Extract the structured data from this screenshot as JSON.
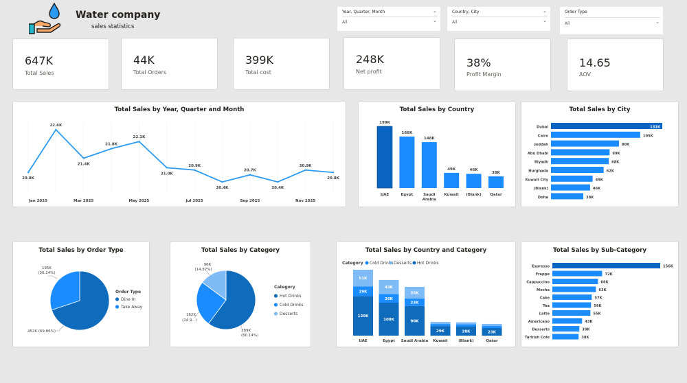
{
  "header": {
    "company": "Water company",
    "subtitle": "sales statistics",
    "logo_icon": "water-drop-hand-icon"
  },
  "slicers": [
    {
      "label": "Year, Quarter, Month",
      "value": "All"
    },
    {
      "label": "Country, City",
      "value": "All"
    },
    {
      "label": "Order Type",
      "value": "All"
    }
  ],
  "kpis": [
    {
      "value": "647K",
      "label": "Total Sales"
    },
    {
      "value": "44K",
      "label": "Total Orders"
    },
    {
      "value": "399K",
      "label": "Total cost"
    },
    {
      "value": "248K",
      "label": "Net profit"
    },
    {
      "value": "38%",
      "label": "Profit Margin"
    },
    {
      "value": "14.65",
      "label": "AOV"
    }
  ],
  "colors": {
    "primary": "#1a8cff",
    "dark": "#0f6cbd",
    "light": "#7fbcf7",
    "line": "#2b9af3",
    "highlight": "#0a64c2"
  },
  "chart_data": [
    {
      "type": "line",
      "title": "Total Sales by Year, Quarter and Month",
      "tick_labels": [
        "Jan 2025",
        "Mar 2025",
        "May 2025",
        "Jul 2025",
        "Sep 2025",
        "Nov 2025"
      ],
      "x": [
        "Jan 2025",
        "Feb 2025",
        "Mar 2025",
        "Apr 2025",
        "May 2025",
        "Jun 2025",
        "Jul 2025",
        "Aug 2025",
        "Sep 2025",
        "Oct 2025",
        "Nov 2025",
        "Dec 2025"
      ],
      "values": [
        20.8,
        22.6,
        21.4,
        21.8,
        22.1,
        21.0,
        20.9,
        20.4,
        20.7,
        20.4,
        20.9,
        20.8
      ],
      "data_labels": [
        "20.8K",
        "22.6K",
        "21.4K",
        "21.8K",
        "22.1K",
        "21.0K",
        "20.9K",
        "20.4K",
        "20.7K",
        "20.4K",
        "20.9K",
        "20.8K"
      ],
      "ylim": [
        20.2,
        22.8
      ]
    },
    {
      "type": "bar",
      "title": "Total Sales by Country",
      "categories": [
        "UAE",
        "Egypt",
        "Saudi Arabia",
        "Kuwait",
        "(Blank)",
        "Qatar"
      ],
      "values": [
        199,
        166,
        148,
        49,
        46,
        38
      ],
      "data_labels": [
        "199K",
        "166K",
        "148K",
        "49K",
        "46K",
        "38K"
      ]
    },
    {
      "type": "bar",
      "orientation": "horizontal",
      "title": "Total Sales by City",
      "categories": [
        "Dubai",
        "Cairo",
        "Jeddah",
        "Abu Dhabi",
        "Riyadh",
        "Hurghada",
        "Kuwait City",
        "(Blank)",
        "Doha"
      ],
      "values": [
        131,
        105,
        80,
        69,
        68,
        62,
        49,
        46,
        38
      ],
      "data_labels": [
        "131K",
        "105K",
        "80K",
        "69K",
        "68K",
        "62K",
        "49K",
        "46K",
        "38K"
      ]
    },
    {
      "type": "pie",
      "title": "Total Sales by Order Type",
      "legend_title": "Order Type",
      "categories": [
        "Dine In",
        "Take Away"
      ],
      "values": [
        452,
        195
      ],
      "slice_labels": [
        "452K (69.86%)",
        "195K (30.14%)"
      ]
    },
    {
      "type": "pie",
      "title": "Total Sales by Category",
      "legend_title": "Category",
      "categories": [
        "Hot  Drinks",
        "Cold  Drinks",
        "Desserts"
      ],
      "values": [
        389,
        162,
        96
      ],
      "slice_labels": [
        "389K (60.14%)",
        "162K (24.9...)",
        "96K (14.87%)"
      ]
    },
    {
      "type": "bar",
      "stacked": true,
      "title": "Total Sales by Country and Category",
      "legend_title": "Category",
      "categories": [
        "UAE",
        "Egypt",
        "Saudi Arabia",
        "Kuwait",
        "(Blank)",
        "Qatar"
      ],
      "series": [
        {
          "name": "Hot  Drinks",
          "values": [
            120,
            100,
            90,
            29,
            28,
            23
          ],
          "labels": [
            "120K",
            "100K",
            "90K",
            "29K",
            "28K",
            "23K"
          ]
        },
        {
          "name": "Cold  Drinks",
          "values": [
            29,
            26,
            23,
            0,
            0,
            0
          ],
          "labels": [
            "29K",
            "26K",
            "23K",
            "",
            "",
            ""
          ]
        },
        {
          "name": "Desserts",
          "values": [
            51,
            43,
            35,
            0,
            0,
            0
          ],
          "labels": [
            "51K",
            "43K",
            "35K",
            "",
            "",
            ""
          ]
        }
      ]
    },
    {
      "type": "bar",
      "orientation": "horizontal",
      "title": "Total Sales by Sub-Category",
      "categories": [
        "Espresso",
        "Frappe",
        "Cappuccino",
        "Mocha",
        "Cake",
        "Tea",
        "Latte",
        "Americano",
        "Desserts",
        "Turkish Cofe"
      ],
      "values": [
        156,
        72,
        66,
        63,
        57,
        56,
        55,
        43,
        39,
        38
      ],
      "data_labels": [
        "156K",
        "72K",
        "66K",
        "63K",
        "57K",
        "56K",
        "55K",
        "43K",
        "39K",
        "38K"
      ]
    }
  ]
}
